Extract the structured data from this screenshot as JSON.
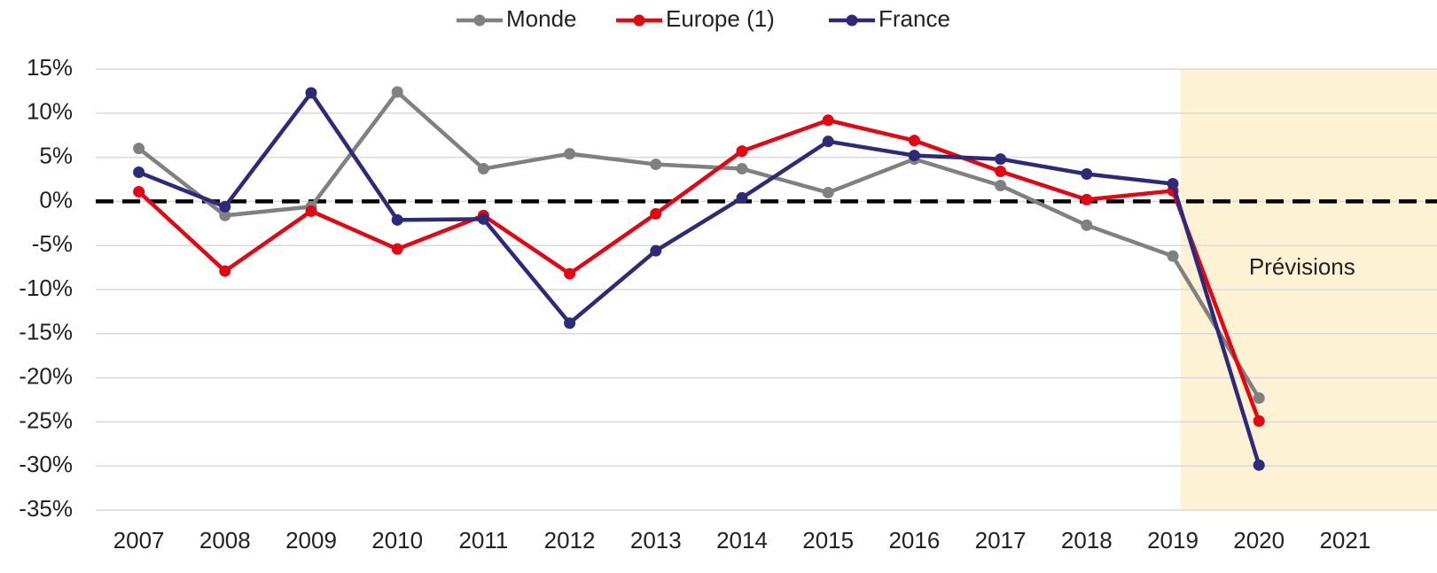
{
  "chart_data": {
    "type": "line",
    "categories": [
      "2007",
      "2008",
      "2009",
      "2010",
      "2011",
      "2012",
      "2013",
      "2014",
      "2015",
      "2016",
      "2017",
      "2018",
      "2019",
      "2020",
      "2021"
    ],
    "series": [
      {
        "name": "Monde",
        "color": "#808080",
        "values": [
          6.0,
          -1.6,
          -0.6,
          12.4,
          3.7,
          5.4,
          4.2,
          3.7,
          1.0,
          4.8,
          1.8,
          -2.7,
          -6.2,
          -22.3,
          null
        ]
      },
      {
        "name": "Europe (1)",
        "color": "#e30613",
        "values": [
          1.1,
          -7.9,
          -1.1,
          -5.4,
          -1.6,
          -8.2,
          -1.4,
          5.7,
          9.2,
          6.9,
          3.4,
          0.2,
          1.2,
          -24.9,
          null
        ]
      },
      {
        "name": "France",
        "color": "#2e2a7a",
        "values": [
          3.3,
          -0.6,
          12.3,
          -2.1,
          -2.0,
          -13.8,
          -5.6,
          0.4,
          6.8,
          5.2,
          4.8,
          3.1,
          2.0,
          -29.9,
          null
        ]
      }
    ],
    "ylim": [
      -35,
      15
    ],
    "yticks": [
      {
        "value": -35,
        "label": "-35%"
      },
      {
        "value": -30,
        "label": "-30%"
      },
      {
        "value": -25,
        "label": "-25%"
      },
      {
        "value": -20,
        "label": "-20%"
      },
      {
        "value": -15,
        "label": "-15%"
      },
      {
        "value": -10,
        "label": "-10%"
      },
      {
        "value": -5,
        "label": "-5%"
      },
      {
        "value": 0,
        "label": "0%"
      },
      {
        "value": 5,
        "label": "5%"
      },
      {
        "value": 10,
        "label": "10%"
      },
      {
        "value": 15,
        "label": "15%"
      }
    ],
    "grid": true,
    "reference_line": 0,
    "shaded_from": "2020",
    "shaded_color": "#fdf2d3",
    "annotation": "Prévisions",
    "legend": "top"
  }
}
